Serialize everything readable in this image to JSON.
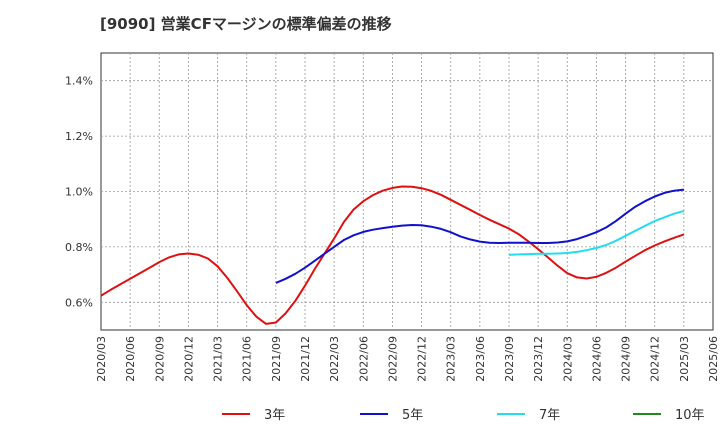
{
  "chart_data": {
    "type": "line",
    "title": "[9090]  営業CFマージンの標準偏差の推移",
    "xlabel": "",
    "ylabel": "",
    "x_ticks": [
      "2020/03",
      "2020/06",
      "2020/09",
      "2020/12",
      "2021/03",
      "2021/06",
      "2021/09",
      "2021/12",
      "2022/03",
      "2022/06",
      "2022/09",
      "2022/12",
      "2023/03",
      "2023/06",
      "2023/09",
      "2023/12",
      "2024/03",
      "2024/06",
      "2024/09",
      "2024/12",
      "2025/03",
      "2025/06"
    ],
    "y_ticks": [
      "0.6%",
      "0.8%",
      "1.0%",
      "1.2%",
      "1.4%"
    ],
    "y_tick_values": [
      0.6,
      0.8,
      1.0,
      1.2,
      1.4
    ],
    "ylim": [
      0.5,
      1.5
    ],
    "xlim": [
      "2020/03",
      "2025/06"
    ],
    "grid": true,
    "legend_position": "bottom",
    "series": [
      {
        "name": "3年",
        "color": "#dd1111",
        "points": [
          [
            "2020/03",
            0.624
          ],
          [
            "2020/04",
            0.645
          ],
          [
            "2020/05",
            0.665
          ],
          [
            "2020/06",
            0.685
          ],
          [
            "2020/07",
            0.705
          ],
          [
            "2020/08",
            0.725
          ],
          [
            "2020/09",
            0.745
          ],
          [
            "2020/10",
            0.762
          ],
          [
            "2020/11",
            0.773
          ],
          [
            "2020/12",
            0.776
          ],
          [
            "2021/01",
            0.772
          ],
          [
            "2021/02",
            0.758
          ],
          [
            "2021/03",
            0.73
          ],
          [
            "2021/04",
            0.688
          ],
          [
            "2021/05",
            0.64
          ],
          [
            "2021/06",
            0.59
          ],
          [
            "2021/07",
            0.548
          ],
          [
            "2021/08",
            0.522
          ],
          [
            "2021/09",
            0.527
          ],
          [
            "2021/10",
            0.56
          ],
          [
            "2021/11",
            0.605
          ],
          [
            "2021/12",
            0.66
          ],
          [
            "2022/01",
            0.72
          ],
          [
            "2022/02",
            0.775
          ],
          [
            "2022/03",
            0.83
          ],
          [
            "2022/04",
            0.89
          ],
          [
            "2022/05",
            0.935
          ],
          [
            "2022/06",
            0.965
          ],
          [
            "2022/07",
            0.987
          ],
          [
            "2022/08",
            1.003
          ],
          [
            "2022/09",
            1.013
          ],
          [
            "2022/10",
            1.018
          ],
          [
            "2022/11",
            1.017
          ],
          [
            "2022/12",
            1.012
          ],
          [
            "2023/01",
            1.002
          ],
          [
            "2023/02",
            0.988
          ],
          [
            "2023/03",
            0.97
          ],
          [
            "2023/04",
            0.952
          ],
          [
            "2023/05",
            0.934
          ],
          [
            "2023/06",
            0.915
          ],
          [
            "2023/07",
            0.898
          ],
          [
            "2023/08",
            0.882
          ],
          [
            "2023/09",
            0.866
          ],
          [
            "2023/10",
            0.846
          ],
          [
            "2023/11",
            0.82
          ],
          [
            "2023/12",
            0.792
          ],
          [
            "2024/01",
            0.762
          ],
          [
            "2024/02",
            0.732
          ],
          [
            "2024/03",
            0.705
          ],
          [
            "2024/04",
            0.69
          ],
          [
            "2024/05",
            0.686
          ],
          [
            "2024/06",
            0.692
          ],
          [
            "2024/07",
            0.706
          ],
          [
            "2024/08",
            0.725
          ],
          [
            "2024/09",
            0.747
          ],
          [
            "2024/10",
            0.768
          ],
          [
            "2024/11",
            0.788
          ],
          [
            "2024/12",
            0.805
          ],
          [
            "2025/01",
            0.82
          ],
          [
            "2025/02",
            0.833
          ],
          [
            "2025/03",
            0.845
          ]
        ]
      },
      {
        "name": "5年",
        "color": "#1111cc",
        "points": [
          [
            "2021/09",
            0.67
          ],
          [
            "2021/10",
            0.685
          ],
          [
            "2021/11",
            0.703
          ],
          [
            "2021/12",
            0.725
          ],
          [
            "2022/01",
            0.75
          ],
          [
            "2022/02",
            0.775
          ],
          [
            "2022/03",
            0.8
          ],
          [
            "2022/04",
            0.825
          ],
          [
            "2022/05",
            0.842
          ],
          [
            "2022/06",
            0.854
          ],
          [
            "2022/07",
            0.862
          ],
          [
            "2022/08",
            0.868
          ],
          [
            "2022/09",
            0.873
          ],
          [
            "2022/10",
            0.877
          ],
          [
            "2022/11",
            0.879
          ],
          [
            "2022/12",
            0.878
          ],
          [
            "2023/01",
            0.873
          ],
          [
            "2023/02",
            0.865
          ],
          [
            "2023/03",
            0.853
          ],
          [
            "2023/04",
            0.838
          ],
          [
            "2023/05",
            0.827
          ],
          [
            "2023/06",
            0.819
          ],
          [
            "2023/07",
            0.815
          ],
          [
            "2023/08",
            0.814
          ],
          [
            "2023/09",
            0.815
          ],
          [
            "2023/10",
            0.815
          ],
          [
            "2023/11",
            0.815
          ],
          [
            "2023/12",
            0.814
          ],
          [
            "2024/01",
            0.814
          ],
          [
            "2024/02",
            0.816
          ],
          [
            "2024/03",
            0.82
          ],
          [
            "2024/04",
            0.828
          ],
          [
            "2024/05",
            0.84
          ],
          [
            "2024/06",
            0.853
          ],
          [
            "2024/07",
            0.87
          ],
          [
            "2024/08",
            0.893
          ],
          [
            "2024/09",
            0.92
          ],
          [
            "2024/10",
            0.945
          ],
          [
            "2024/11",
            0.965
          ],
          [
            "2024/12",
            0.982
          ],
          [
            "2025/01",
            0.995
          ],
          [
            "2025/02",
            1.003
          ],
          [
            "2025/03",
            1.007
          ]
        ]
      },
      {
        "name": "7年",
        "color": "#22ddee",
        "points": [
          [
            "2023/09",
            0.771
          ],
          [
            "2023/10",
            0.773
          ],
          [
            "2023/11",
            0.774
          ],
          [
            "2023/12",
            0.775
          ],
          [
            "2024/01",
            0.775
          ],
          [
            "2024/02",
            0.776
          ],
          [
            "2024/03",
            0.778
          ],
          [
            "2024/04",
            0.782
          ],
          [
            "2024/05",
            0.788
          ],
          [
            "2024/06",
            0.796
          ],
          [
            "2024/07",
            0.807
          ],
          [
            "2024/08",
            0.822
          ],
          [
            "2024/09",
            0.84
          ],
          [
            "2024/10",
            0.858
          ],
          [
            "2024/11",
            0.876
          ],
          [
            "2024/12",
            0.893
          ],
          [
            "2025/01",
            0.907
          ],
          [
            "2025/02",
            0.92
          ],
          [
            "2025/03",
            0.93
          ]
        ]
      },
      {
        "name": "10年",
        "color": "#228822",
        "points": []
      }
    ]
  }
}
